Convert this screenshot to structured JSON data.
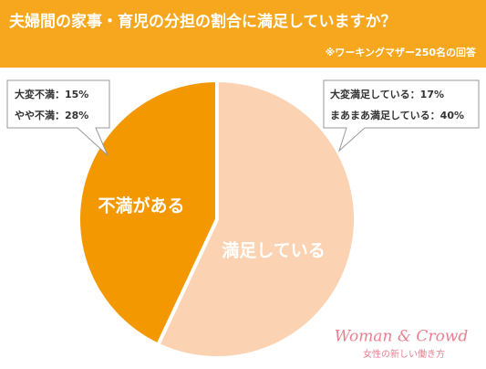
{
  "chart_data": {
    "type": "pie",
    "title": "夫婦間の家事・育児の分担の割合に満足していますか？",
    "subtitle": "※ワーキングマザー250名の回答",
    "categories": [
      "満足している",
      "不満がある"
    ],
    "values": [
      57,
      43
    ],
    "colors": [
      "#fbd3b2",
      "#f39800"
    ],
    "annotations": [
      {
        "lines": [
          {
            "label": "大変満足している：",
            "value": 17,
            "value_label": "17%"
          },
          {
            "label": "まあまあ満足している：",
            "value": 40,
            "value_label": "40%"
          }
        ]
      },
      {
        "lines": [
          {
            "label": "大変不満：",
            "value": 15,
            "value_label": "15%"
          },
          {
            "label": "やや不満：",
            "value": 28,
            "value_label": "28%"
          }
        ]
      }
    ]
  },
  "logo": {
    "name": "Woman & Crowd",
    "tagline": "女性の新しい働き方"
  }
}
